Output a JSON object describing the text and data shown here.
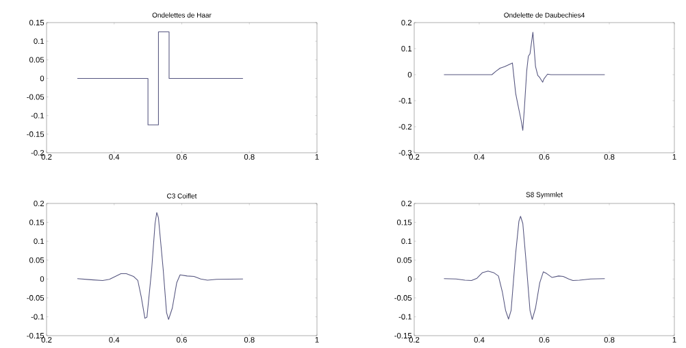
{
  "chart_data": [
    {
      "type": "line",
      "title": "Ondelettes de Haar",
      "color": "#55557f",
      "xlim": [
        0.2,
        1
      ],
      "ylim": [
        -0.2,
        0.15
      ],
      "xticks": [
        0.2,
        0.4,
        0.6,
        0.8,
        1
      ],
      "yticks": [
        -0.2,
        -0.15,
        -0.1,
        -0.05,
        0,
        0.05,
        0.1,
        0.15
      ],
      "x": [
        0.291,
        0.5,
        0.5,
        0.531,
        0.531,
        0.5625,
        0.5625,
        0.781
      ],
      "values": [
        0,
        0,
        -0.125,
        -0.125,
        0.125,
        0.125,
        0,
        0
      ]
    },
    {
      "type": "line",
      "title": "Ondelette de Daubechies4",
      "color": "#55557f",
      "xlim": [
        0.2,
        1
      ],
      "ylim": [
        -0.3,
        0.2
      ],
      "xticks": [
        0.2,
        0.4,
        0.6,
        0.8,
        1
      ],
      "yticks": [
        -0.3,
        -0.2,
        -0.1,
        0,
        0.1,
        0.2
      ],
      "x": [
        0.2915,
        0.439,
        0.451,
        0.464,
        0.478,
        0.502,
        0.512,
        0.519,
        0.529,
        0.534,
        0.539,
        0.546,
        0.551,
        0.556,
        0.565,
        0.573,
        0.58,
        0.586,
        0.595,
        0.599,
        0.61,
        0.62,
        0.786
      ],
      "values": [
        0,
        0,
        0.013,
        0.025,
        0.031,
        0.045,
        -0.072,
        -0.116,
        -0.177,
        -0.214,
        -0.125,
        0.015,
        0.071,
        0.08,
        0.163,
        0.032,
        -0.003,
        -0.011,
        -0.029,
        -0.016,
        0.002,
        0,
        0
      ]
    },
    {
      "type": "line",
      "title": "C3 Coiflet",
      "color": "#55557f",
      "xlim": [
        0.2,
        1
      ],
      "ylim": [
        -0.15,
        0.2
      ],
      "xticks": [
        0.2,
        0.4,
        0.6,
        0.8,
        1
      ],
      "yticks": [
        -0.15,
        -0.1,
        -0.05,
        0,
        0.05,
        0.1,
        0.15,
        0.2
      ],
      "x": [
        0.291,
        0.332,
        0.366,
        0.386,
        0.42,
        0.436,
        0.457,
        0.47,
        0.48,
        0.491,
        0.497,
        0.511,
        0.521,
        0.526,
        0.531,
        0.545,
        0.555,
        0.561,
        0.572,
        0.585,
        0.595,
        0.616,
        0.636,
        0.656,
        0.676,
        0.703,
        0.781
      ],
      "values": [
        0.001,
        -0.002,
        -0.004,
        -0.001,
        0.014,
        0.014,
        0.007,
        -0.004,
        -0.047,
        -0.104,
        -0.101,
        0.026,
        0.147,
        0.176,
        0.162,
        0.026,
        -0.089,
        -0.107,
        -0.077,
        -0.01,
        0.011,
        0.008,
        0.007,
        0,
        -0.003,
        -0.001,
        0
      ]
    },
    {
      "type": "line",
      "title": "S8 Symmlet",
      "color": "#55557f",
      "xlim": [
        0.2,
        1
      ],
      "ylim": [
        -0.15,
        0.2
      ],
      "xticks": [
        0.2,
        0.4,
        0.6,
        0.8,
        1
      ],
      "yticks": [
        -0.15,
        -0.1,
        -0.05,
        0,
        0.05,
        0.1,
        0.15,
        0.2
      ],
      "x": [
        0.2915,
        0.329,
        0.356,
        0.376,
        0.393,
        0.41,
        0.427,
        0.444,
        0.459,
        0.471,
        0.481,
        0.49,
        0.498,
        0.512,
        0.522,
        0.527,
        0.534,
        0.546,
        0.556,
        0.563,
        0.573,
        0.586,
        0.597,
        0.608,
        0.624,
        0.644,
        0.658,
        0.675,
        0.688,
        0.708,
        0.742,
        0.786
      ],
      "values": [
        0.001,
        0,
        -0.003,
        -0.004,
        0.002,
        0.017,
        0.021,
        0.017,
        0.008,
        -0.034,
        -0.083,
        -0.106,
        -0.083,
        0.068,
        0.153,
        0.166,
        0.147,
        0.026,
        -0.083,
        -0.107,
        -0.077,
        -0.01,
        0.019,
        0.014,
        0.004,
        0.008,
        0.007,
        0,
        -0.004,
        -0.003,
        0,
        0.001
      ]
    }
  ]
}
